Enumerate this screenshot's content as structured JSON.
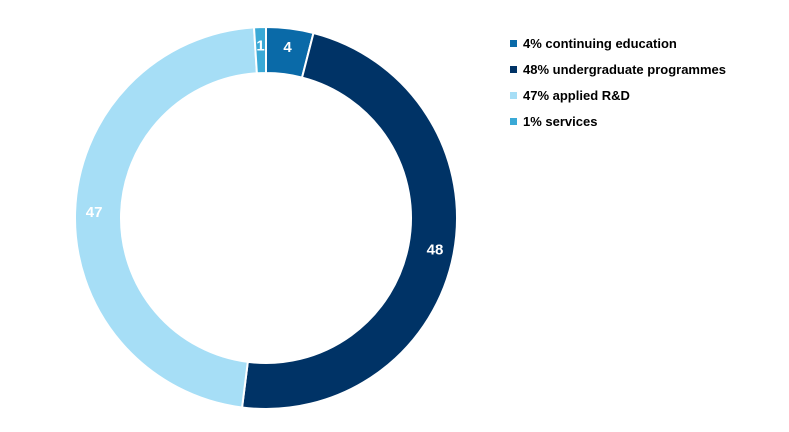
{
  "chart_data": {
    "type": "pie",
    "donut": true,
    "categories": [
      "continuing education",
      "undergraduate programmes",
      "applied R&D",
      "services"
    ],
    "values": [
      4,
      48,
      47,
      1
    ],
    "colors": [
      "#0a6aa8",
      "#003366",
      "#a6def6",
      "#3aa9d6"
    ],
    "slice_labels": [
      "4",
      "48",
      "47",
      "1"
    ],
    "legend": [
      "4% continuing education",
      "48% undergraduate programmes",
      "47% applied R&D",
      "1% services"
    ],
    "legend_placement": "top-right"
  }
}
